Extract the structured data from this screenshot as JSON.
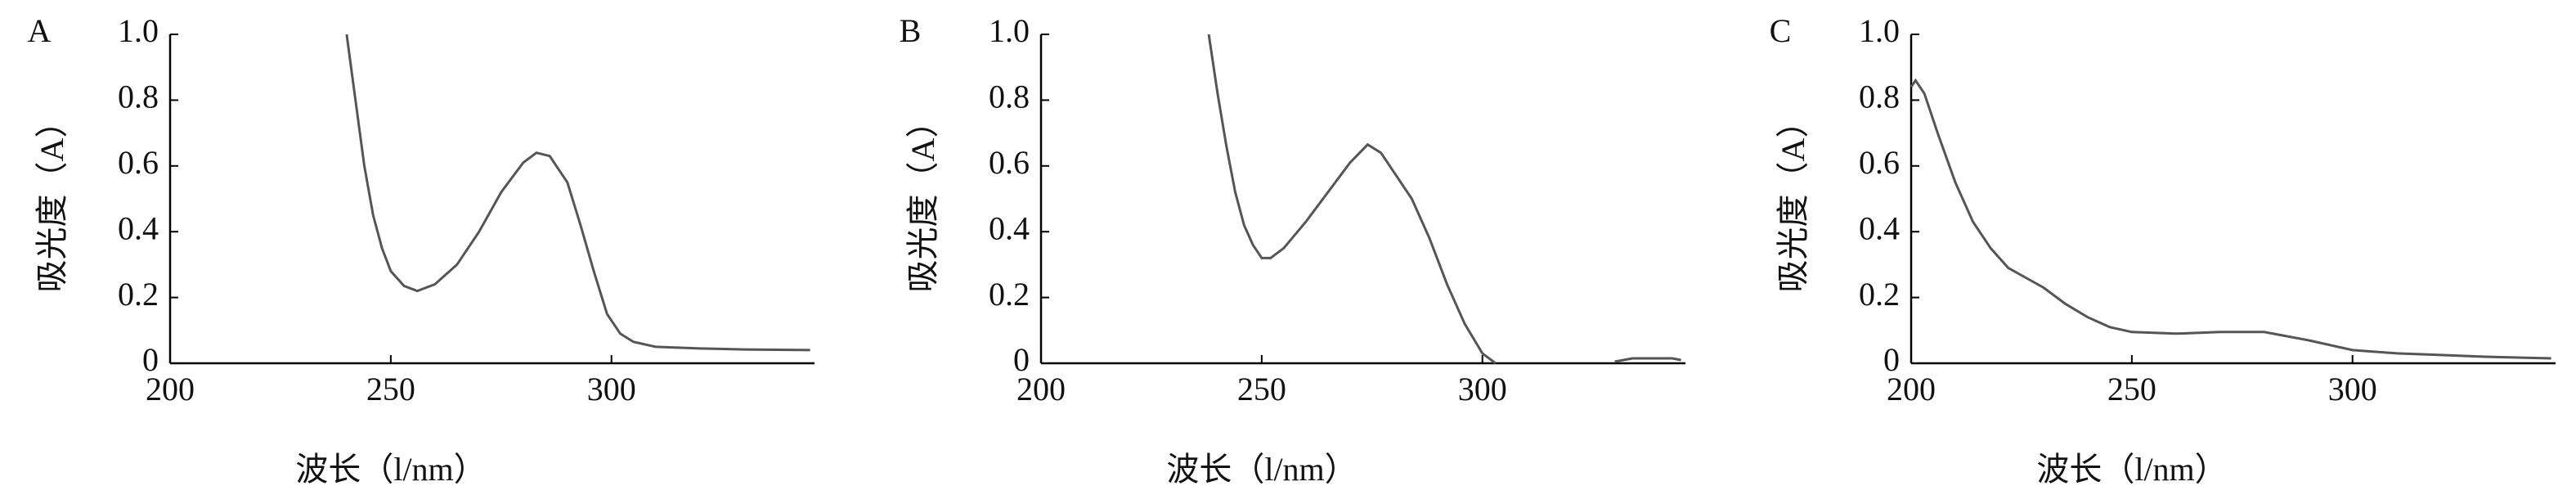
{
  "chart_data": [
    {
      "type": "line",
      "panel_label": "A",
      "ylabel": "吸光度（A）",
      "xlabel": "波长（l/nm）",
      "color": "#555555",
      "x": [
        240,
        242,
        244,
        246,
        248,
        250,
        253,
        256,
        260,
        265,
        270,
        275,
        280,
        283,
        286,
        290,
        293,
        296,
        299,
        302,
        305,
        310,
        320,
        330,
        345
      ],
      "values": [
        1.0,
        0.8,
        0.6,
        0.45,
        0.35,
        0.28,
        0.235,
        0.22,
        0.24,
        0.3,
        0.4,
        0.52,
        0.61,
        0.64,
        0.63,
        0.55,
        0.42,
        0.28,
        0.15,
        0.09,
        0.065,
        0.05,
        0.045,
        0.042,
        0.04
      ],
      "xlim": [
        200,
        346
      ],
      "ylim": [
        0,
        1
      ],
      "xticks": [
        200,
        250,
        300
      ],
      "yticks": [
        0,
        0.2,
        0.4,
        0.6,
        0.8,
        {
          "value": 1,
          "label": "1.0"
        }
      ]
    },
    {
      "type": "line",
      "panel_label": "B",
      "ylabel": "吸光度（A）",
      "xlabel": "波长（l/nm）",
      "color": "#555555",
      "x": [
        238,
        240,
        242,
        244,
        246,
        248,
        250,
        252,
        255,
        260,
        265,
        270,
        274,
        277,
        280,
        284,
        288,
        292,
        296,
        300,
        303,
        305,
        330,
        334,
        343,
        345
      ],
      "values": [
        1.0,
        0.82,
        0.66,
        0.52,
        0.42,
        0.36,
        0.32,
        0.32,
        0.35,
        0.43,
        0.52,
        0.61,
        0.665,
        0.64,
        0.58,
        0.5,
        0.38,
        0.24,
        0.12,
        0.03,
        0.0,
        null,
        0.005,
        0.015,
        0.015,
        0.01
      ],
      "xlim": [
        200,
        346
      ],
      "ylim": [
        0,
        1
      ],
      "xticks": [
        200,
        250,
        300
      ],
      "yticks": [
        0,
        0.2,
        0.4,
        0.6,
        0.8,
        {
          "value": 1,
          "label": "1.0"
        }
      ]
    },
    {
      "type": "line",
      "panel_label": "C",
      "ylabel": "吸光度（A）",
      "xlabel": "波长（l/nm）",
      "color": "#555555",
      "x": [
        200,
        201,
        203,
        206,
        210,
        214,
        218,
        222,
        226,
        230,
        235,
        240,
        245,
        250,
        260,
        270,
        280,
        290,
        300,
        310,
        320,
        330,
        345
      ],
      "values": [
        0.84,
        0.86,
        0.82,
        0.7,
        0.55,
        0.43,
        0.35,
        0.29,
        0.26,
        0.23,
        0.18,
        0.14,
        0.11,
        0.095,
        0.09,
        0.095,
        0.095,
        0.07,
        0.04,
        0.03,
        0.025,
        0.02,
        0.015
      ],
      "xlim": [
        200,
        346
      ],
      "ylim": [
        0,
        1
      ],
      "xticks": [
        200,
        250,
        300
      ],
      "yticks": [
        0,
        0.2,
        0.4,
        0.6,
        0.8,
        {
          "value": 1,
          "label": "1.0"
        }
      ]
    }
  ]
}
